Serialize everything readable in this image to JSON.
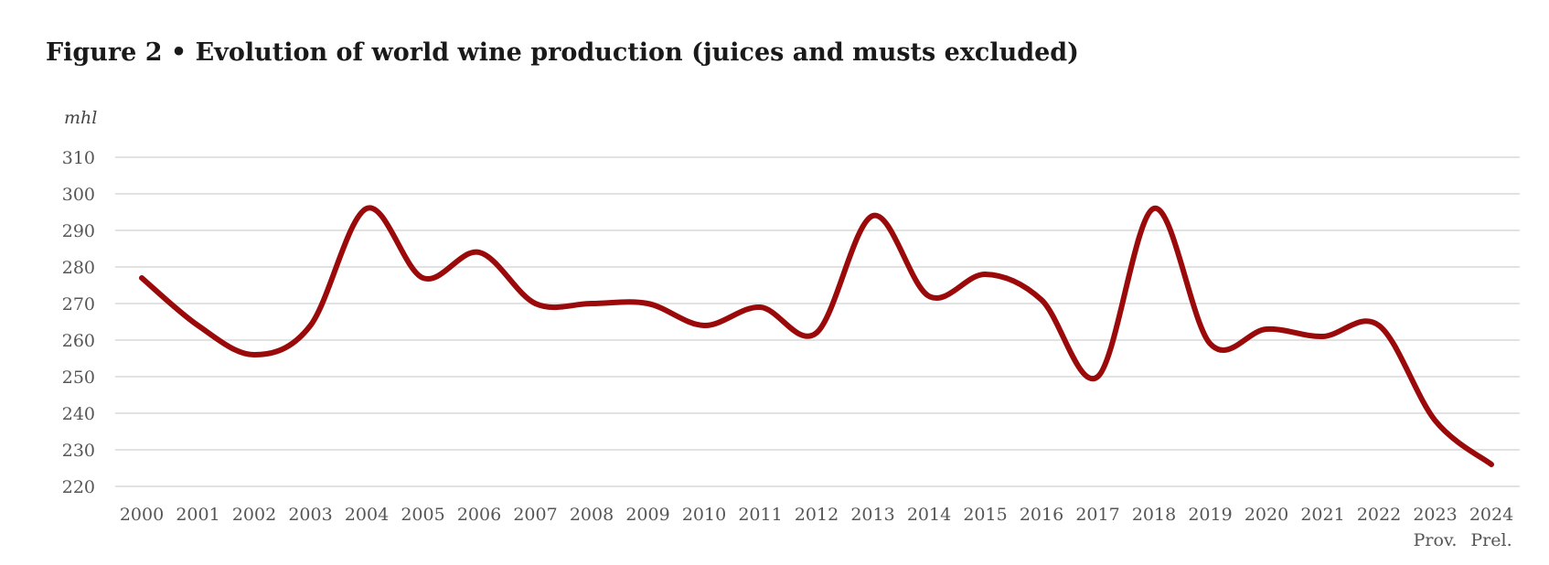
{
  "chart_data": {
    "type": "line",
    "title": "Figure 2 • Evolution of world wine production (juices and musts excluded)",
    "ylabel": "mhl",
    "xlabel": "",
    "ylim": [
      220,
      310
    ],
    "yticks": [
      220,
      230,
      240,
      250,
      260,
      270,
      280,
      290,
      300,
      310
    ],
    "categories": [
      "2000",
      "2001",
      "2002",
      "2003",
      "2004",
      "2005",
      "2006",
      "2007",
      "2008",
      "2009",
      "2010",
      "2011",
      "2012",
      "2013",
      "2014",
      "2015",
      "2016",
      "2017",
      "2018",
      "2019",
      "2020",
      "2021",
      "2022",
      "2023",
      "2024"
    ],
    "category_notes": {
      "2023": "Prov.",
      "2024": "Prel."
    },
    "grid": true,
    "legend": "none",
    "series": [
      {
        "color": "#9b0a0a",
        "values": [
          277,
          264,
          256,
          264,
          296,
          277,
          284,
          270,
          270,
          270,
          264,
          269,
          262,
          294,
          272,
          278,
          271,
          250,
          296,
          259,
          263,
          261,
          264,
          238,
          226
        ]
      }
    ]
  }
}
